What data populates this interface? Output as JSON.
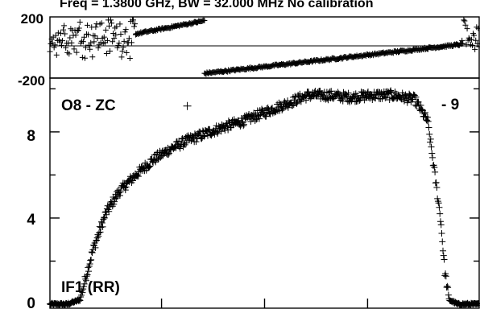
{
  "title": "Freq = 1.3800 GHz, BW = 32.000 MHz  No calibration",
  "baseline_label": "O8 - ZC",
  "right_label": "- 9",
  "polarization_label": "IF1 (RR)",
  "chart_data": [
    {
      "panel": "phase",
      "type": "scatter",
      "ylim": [
        -200,
        200
      ],
      "yticks": [
        "200",
        "-200"
      ],
      "reference_line": 0,
      "marker": "plus",
      "segments": [
        {
          "x": [
            0.0,
            0.2
          ],
          "y": [
            -30,
            190
          ],
          "note": "noisy"
        },
        {
          "x": [
            0.2,
            0.36
          ],
          "y": [
            95,
            190
          ]
        },
        {
          "x": [
            0.36,
            0.96
          ],
          "y": [
            -190,
            20
          ]
        },
        {
          "x": [
            0.96,
            1.0
          ],
          "y": [
            -30,
            190
          ],
          "note": "noisy"
        }
      ]
    },
    {
      "panel": "amplitude",
      "type": "scatter",
      "ylim": [
        0,
        10.5
      ],
      "yticks": [
        "0",
        "4",
        "8"
      ],
      "marker": "plus",
      "x": [
        0.0,
        0.04,
        0.07,
        0.1,
        0.13,
        0.16,
        0.2,
        0.24,
        0.28,
        0.32,
        0.36,
        0.4,
        0.45,
        0.5,
        0.55,
        0.6,
        0.65,
        0.7,
        0.75,
        0.8,
        0.85,
        0.88,
        0.91,
        0.92,
        0.93,
        0.95,
        1.0
      ],
      "y": [
        0.0,
        0.0,
        0.2,
        2.5,
        4.2,
        5.2,
        6.0,
        6.7,
        7.2,
        7.6,
        7.9,
        8.2,
        8.5,
        8.9,
        9.3,
        9.7,
        9.7,
        9.6,
        9.7,
        9.7,
        9.5,
        8.5,
        4.0,
        1.5,
        0.2,
        0.0,
        0.0
      ]
    }
  ]
}
